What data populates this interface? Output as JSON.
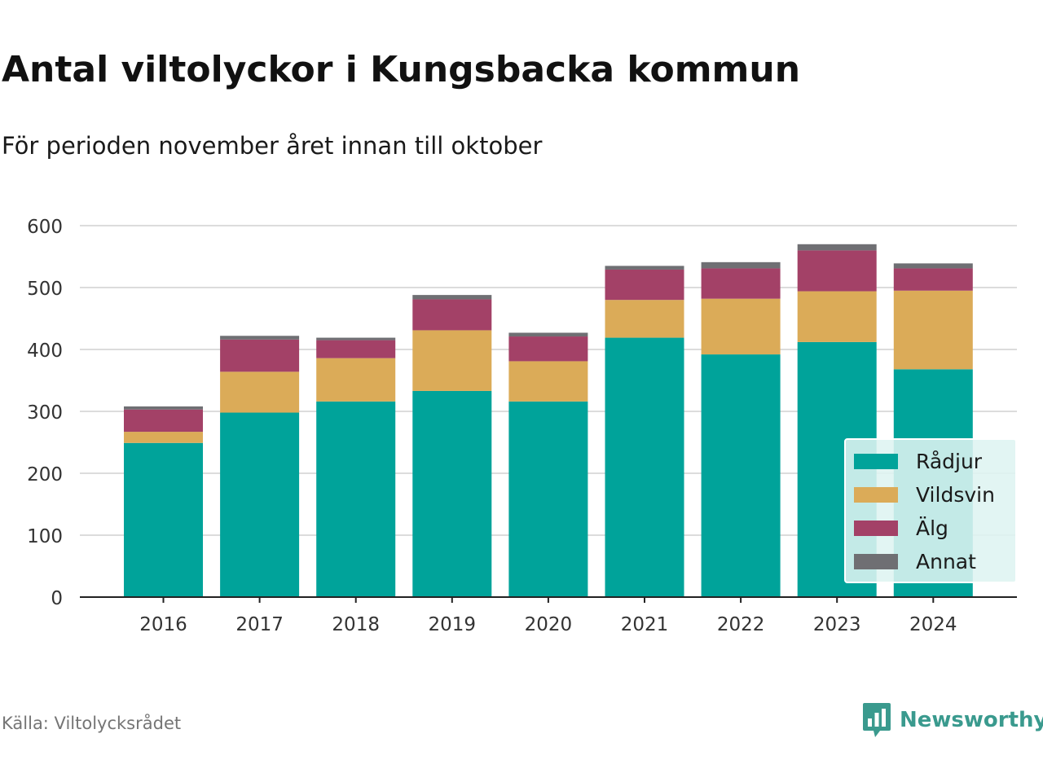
{
  "header": {
    "title": "Antal viltolyckor i Kungsbacka kommun",
    "subtitle": "För perioden november året innan till oktober"
  },
  "footer": {
    "source": "Källa: Viltolycksrådet",
    "brand": "Newsworthy",
    "brand_icon": "bar-chart-logo-icon",
    "brand_color": "#3a9a8e"
  },
  "chart_data": {
    "type": "bar",
    "stacked": true,
    "categories": [
      "2016",
      "2017",
      "2018",
      "2019",
      "2020",
      "2021",
      "2022",
      "2023",
      "2024"
    ],
    "series": [
      {
        "name": "Rådjur",
        "color": "#00a39a",
        "values": [
          249,
          298,
          316,
          333,
          316,
          419,
          392,
          412,
          368
        ]
      },
      {
        "name": "Vildsvin",
        "color": "#dbab58",
        "values": [
          18,
          66,
          70,
          98,
          65,
          61,
          90,
          82,
          127
        ]
      },
      {
        "name": "Älg",
        "color": "#a34167",
        "values": [
          36,
          52,
          29,
          50,
          40,
          49,
          49,
          66,
          36
        ]
      },
      {
        "name": "Annat",
        "color": "#6f6f73",
        "values": [
          5,
          6,
          4,
          7,
          6,
          6,
          10,
          10,
          8
        ]
      }
    ],
    "ylim": [
      0,
      600
    ],
    "yticks": [
      "0",
      "100",
      "200",
      "300",
      "400",
      "500",
      "600"
    ],
    "xlabel": "",
    "ylabel": "",
    "grid": true,
    "legend_position": "bottom-right"
  }
}
